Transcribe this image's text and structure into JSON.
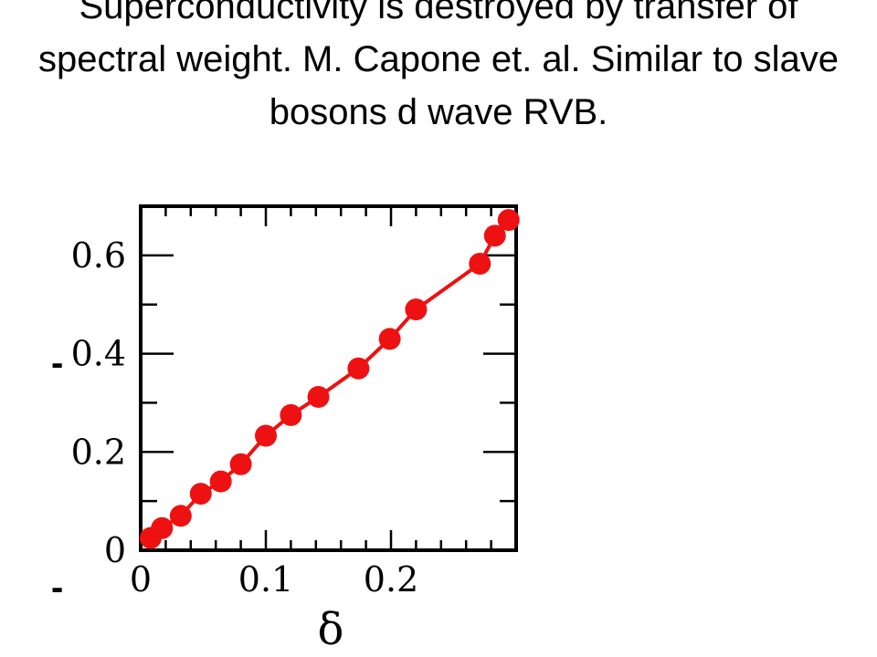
{
  "slide": {
    "title": "Superconductivity is destroyed by transfer of spectral weight. M. Capone et. al.  Similar to  slave bosons d wave RVB.",
    "stray_marks": [
      "-",
      "-"
    ]
  },
  "chart_data": {
    "type": "line",
    "title": "",
    "xlabel": "δ",
    "ylabel": "",
    "xlim": [
      0,
      0.3
    ],
    "ylim": [
      0,
      0.7
    ],
    "xticks": [
      0,
      0.1,
      0.2
    ],
    "xtick_labels": [
      "0",
      "0.1",
      "0.2"
    ],
    "yticks": [
      0,
      0.2,
      0.4,
      0.6
    ],
    "ytick_labels": [
      "0",
      "0.2",
      "0.4",
      "0.6"
    ],
    "grid": false,
    "legend": "none",
    "marker": "circle",
    "color": "#ee1111",
    "series": [
      {
        "x": [
          0.008,
          0.017,
          0.032,
          0.048,
          0.064,
          0.08,
          0.1,
          0.12,
          0.142,
          0.174,
          0.199,
          0.22,
          0.271,
          0.283,
          0.294
        ],
        "y": [
          0.025,
          0.045,
          0.07,
          0.115,
          0.14,
          0.175,
          0.233,
          0.275,
          0.312,
          0.37,
          0.43,
          0.49,
          0.583,
          0.64,
          0.672
        ]
      }
    ]
  }
}
